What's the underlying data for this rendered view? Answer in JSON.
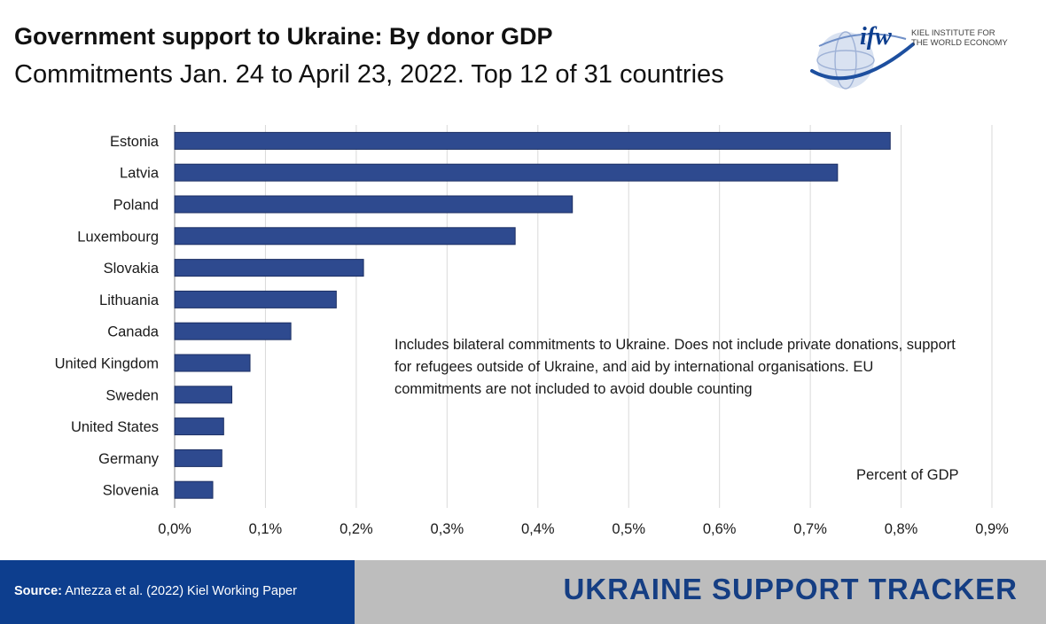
{
  "header": {
    "title": "Government support to Ukraine: By donor GDP",
    "subtitle": "Commitments Jan. 24 to April 23, 2022. Top 12 of 31 countries"
  },
  "logo": {
    "mark": "ifw",
    "line1": "KIEL INSTITUTE FOR",
    "line2": "THE WORLD ECONOMY"
  },
  "note": "Includes bilateral commitments to Ukraine. Does not include private donations, support for refugees outside of Ukraine, and aid by international organisations. EU commitments are not included to avoid double counting",
  "unit_label": "Percent of GDP",
  "footer": {
    "source_label": "Source:",
    "source_text": "Antezza et al. (2022) Kiel Working Paper",
    "tracker": "UKRAINE SUPPORT TRACKER"
  },
  "colors": {
    "bar": "#2e4a8f",
    "bar_edge": "#1c2f63",
    "footer_blue": "#0d3e8e",
    "footer_grey": "#bdbdbd"
  },
  "chart_data": {
    "type": "bar",
    "orientation": "horizontal",
    "categories": [
      "Estonia",
      "Latvia",
      "Poland",
      "Luxembourg",
      "Slovakia",
      "Lithuania",
      "Canada",
      "United Kingdom",
      "Sweden",
      "United States",
      "Germany",
      "Slovenia"
    ],
    "values": [
      0.788,
      0.73,
      0.438,
      0.375,
      0.208,
      0.178,
      0.128,
      0.083,
      0.063,
      0.054,
      0.052,
      0.042
    ],
    "xlim": [
      0,
      0.9
    ],
    "xticks": [
      0,
      0.1,
      0.2,
      0.3,
      0.4,
      0.5,
      0.6,
      0.7,
      0.8,
      0.9
    ],
    "xtick_labels": [
      "0,0%",
      "0,1%",
      "0,2%",
      "0,3%",
      "0,4%",
      "0,5%",
      "0,6%",
      "0,7%",
      "0,8%",
      "0,9%"
    ],
    "grid": "vertical",
    "legend": "none"
  }
}
